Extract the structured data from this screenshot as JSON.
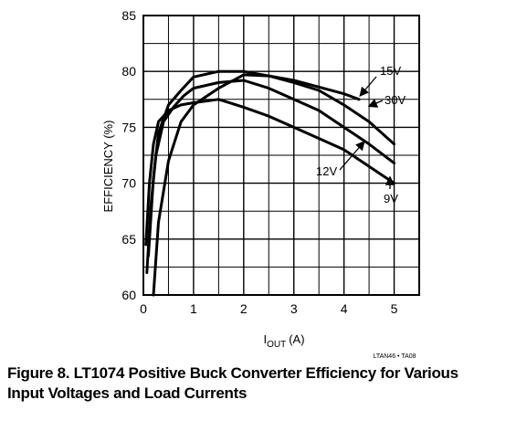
{
  "chart_data": {
    "type": "line",
    "xlabel_main": "I",
    "xlabel_sub": "OUT",
    "xlabel_unit": "(A)",
    "ylabel": "EFFICIENCY (%)",
    "xlim": [
      0,
      5.5
    ],
    "ylim": [
      60,
      85
    ],
    "xticks": [
      0,
      1,
      2,
      3,
      4,
      5
    ],
    "yticks": [
      60,
      65,
      70,
      75,
      80,
      85
    ],
    "x_minor_step": 0.5,
    "y_minor_step": 2.5,
    "grid": true,
    "series": [
      {
        "name": "15V",
        "x": [
          0.1,
          0.2,
          0.3,
          0.5,
          0.75,
          1.0,
          1.5,
          2.0,
          2.5,
          3.0,
          3.5,
          4.0,
          4.3
        ],
        "values": [
          63.5,
          70.5,
          74.5,
          77.0,
          78.3,
          79.5,
          80.0,
          80.0,
          79.6,
          79.2,
          78.6,
          78.0,
          77.5
        ]
      },
      {
        "name": "30V",
        "x": [
          0.2,
          0.3,
          0.5,
          0.75,
          1.0,
          1.5,
          2.0,
          2.5,
          3.0,
          3.5,
          4.0,
          4.5,
          5.0
        ],
        "values": [
          60.0,
          66.5,
          72.0,
          75.5,
          77.0,
          78.5,
          79.7,
          79.6,
          79.0,
          78.3,
          77.0,
          75.5,
          73.5
        ]
      },
      {
        "name": "12V",
        "x": [
          0.07,
          0.15,
          0.25,
          0.4,
          0.6,
          0.8,
          1.0,
          1.5,
          2.0,
          2.5,
          3.0,
          3.5,
          4.0,
          4.5,
          5.0
        ],
        "values": [
          62.0,
          68.0,
          72.5,
          75.5,
          76.8,
          77.8,
          78.5,
          79.0,
          79.2,
          78.5,
          77.5,
          76.5,
          75.0,
          73.5,
          71.8
        ]
      },
      {
        "name": "9V",
        "x": [
          0.05,
          0.12,
          0.2,
          0.3,
          0.5,
          0.75,
          1.0,
          1.5,
          2.0,
          2.5,
          3.0,
          3.5,
          4.0,
          4.5,
          5.0
        ],
        "values": [
          64.5,
          70.0,
          73.5,
          75.5,
          76.5,
          77.0,
          77.2,
          77.5,
          76.8,
          76.0,
          75.0,
          74.0,
          73.0,
          71.5,
          70.0
        ]
      }
    ]
  },
  "footer_code": "LTAN46 • TA08",
  "caption": {
    "line1": "Figure 8. LT1074 Positive Buck Converter Efficiency for Various",
    "line2": "Input Voltages and Load Currents"
  }
}
